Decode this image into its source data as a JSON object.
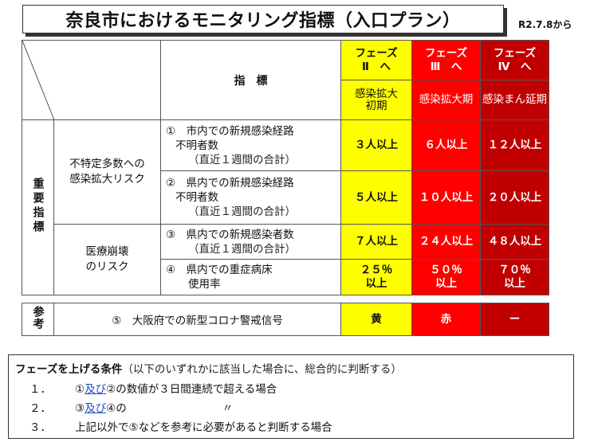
{
  "title": "奈良市におけるモニタリング指標（入口プラン）",
  "date": "R2.7.8から",
  "header": {
    "indicator_label": "指　標",
    "phases": [
      {
        "top": "フェーズ",
        "num": "Ⅱ　へ",
        "sub": "感染拡大\n初期"
      },
      {
        "top": "フェーズ",
        "num": "Ⅲ　へ",
        "sub": "感染拡大期"
      },
      {
        "top": "フェーズ",
        "num": "Ⅳ　へ",
        "sub": "感染まん延期"
      }
    ]
  },
  "side_label": "重要指標",
  "groups": [
    {
      "label": "不特定多数への\n感染拡大リスク"
    },
    {
      "label": "医療崩壊\nのリスク"
    }
  ],
  "rows": [
    {
      "num": "①",
      "text1": "市内での新規感染経路",
      "text2": "不明者数",
      "text3": "（直近１週間の合計）",
      "values": [
        "３人以上",
        "６人以上",
        "１２人以上"
      ]
    },
    {
      "num": "②",
      "text1": "県内での新規感染経路",
      "text2": "不明者数",
      "text3": "（直近１週間の合計）",
      "values": [
        "５人以上",
        "１０人以上",
        "２０人以上"
      ]
    },
    {
      "num": "③",
      "text1": "県内での新規感染者数",
      "text2": "（直近１週間の合計）",
      "text3": "",
      "values": [
        "７人以上",
        "２４人以上",
        "４８人以上"
      ]
    },
    {
      "num": "④",
      "text1": "県内での重症病床",
      "text2": "使用率",
      "text3": "",
      "values": [
        "２５％\n以上",
        "５０％\n以上",
        "７０％\n以上"
      ]
    }
  ],
  "reference": {
    "side": "参考",
    "num": "⑤",
    "text": "大阪府での新型コロナ警戒信号",
    "values": [
      "黄",
      "赤",
      "ー"
    ]
  },
  "conditions": {
    "heading": "フェーズを上げる条件",
    "note": "（以下のいずれかに該当した場合に、総合的に判断する）",
    "items": [
      {
        "no": "１．",
        "a": "①",
        "and": "及び",
        "b": "②の数値が３日間連続で超える場合"
      },
      {
        "no": "２．",
        "a": "③",
        "and": "及び",
        "b": "④の",
        "ditto": "〃"
      },
      {
        "no": "３．",
        "text": "上記以外で⑤などを参考に必要があると判断する場合"
      }
    ]
  },
  "colors": {
    "yellow": "#ffff00",
    "red": "#ff0000",
    "dark_red": "#c00000"
  }
}
